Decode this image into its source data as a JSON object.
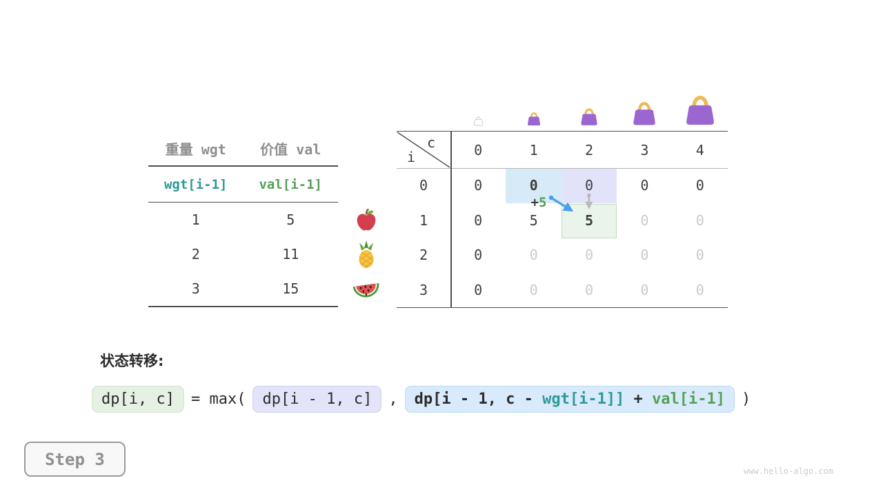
{
  "items_table": {
    "headers": [
      "重量 wgt",
      "价值 val"
    ],
    "index_row": {
      "wgt": "wgt[i-1]",
      "val": "val[i-1]"
    },
    "rows": [
      {
        "wgt": "1",
        "val": "5",
        "fruit": "apple"
      },
      {
        "wgt": "2",
        "val": "11",
        "fruit": "pineapple"
      },
      {
        "wgt": "3",
        "val": "15",
        "fruit": "watermelon"
      }
    ]
  },
  "dp_table": {
    "corner": {
      "col_var": "c",
      "row_var": "i"
    },
    "col_headers": [
      "0",
      "1",
      "2",
      "3",
      "4"
    ],
    "rows": [
      {
        "label": "0",
        "cells": [
          {
            "v": "0"
          },
          {
            "v": "0",
            "bold": true,
            "hl": "blue"
          },
          {
            "v": "0",
            "hl": "lavender"
          },
          {
            "v": "0"
          },
          {
            "v": "0"
          }
        ]
      },
      {
        "label": "1",
        "cells": [
          {
            "v": "0"
          },
          {
            "v": "5"
          },
          {
            "v": "5",
            "bold": true,
            "hl": "green"
          },
          {
            "v": "0",
            "gray": true
          },
          {
            "v": "0",
            "gray": true
          }
        ]
      },
      {
        "label": "2",
        "cells": [
          {
            "v": "0"
          },
          {
            "v": "0",
            "gray": true
          },
          {
            "v": "0",
            "gray": true
          },
          {
            "v": "0",
            "gray": true
          },
          {
            "v": "0",
            "gray": true
          }
        ]
      },
      {
        "label": "3",
        "cells": [
          {
            "v": "0"
          },
          {
            "v": "0",
            "gray": true
          },
          {
            "v": "0",
            "gray": true
          },
          {
            "v": "0",
            "gray": true
          },
          {
            "v": "0",
            "gray": true
          }
        ]
      }
    ],
    "bags": [
      {
        "col": 0,
        "size": 15,
        "variant": "empty"
      },
      {
        "col": 1,
        "size": 22,
        "variant": "filled"
      },
      {
        "col": 2,
        "size": 28,
        "variant": "filled"
      },
      {
        "col": 3,
        "size": 38,
        "variant": "filled"
      },
      {
        "col": 4,
        "size": 48,
        "variant": "filled"
      }
    ],
    "annotation": {
      "plus": "+",
      "value": "5"
    }
  },
  "formula": {
    "label": "状态转移:",
    "lhs": "dp[i, c]",
    "eq_max": "= max(",
    "arg1": "dp[i - 1, c]",
    "comma": ",",
    "arg2_prefix": "dp[i - 1, c - ",
    "arg2_wgt": "wgt[i-1]]",
    "arg2_plus": " + ",
    "arg2_val": "val[i-1]",
    "close": ")"
  },
  "step_badge": {
    "label": "Step 3"
  },
  "watermark": {
    "text": "www.hello-algo.com"
  },
  "colors": {
    "teal": "#2e9a98",
    "green": "#55a057",
    "gray_label": "#8f8f8f",
    "dark_text": "#3d3d3d",
    "muted_zero": "#c9c9cf",
    "highlight_blue": "#d7eaf8",
    "highlight_lavender": "#e2e3f9",
    "highlight_green_bg": "#ebf4ea",
    "highlight_green_border": "#bedcbc",
    "arrow_blue": "#4aa0e8",
    "arrow_gray": "#b9b9b9",
    "bag_purple": "#9b66cf",
    "bag_handle": "#eeb95a"
  },
  "icons": {
    "fruits": [
      "apple-icon",
      "pineapple-icon",
      "watermelon-icon"
    ],
    "bag": "handbag-icon"
  }
}
